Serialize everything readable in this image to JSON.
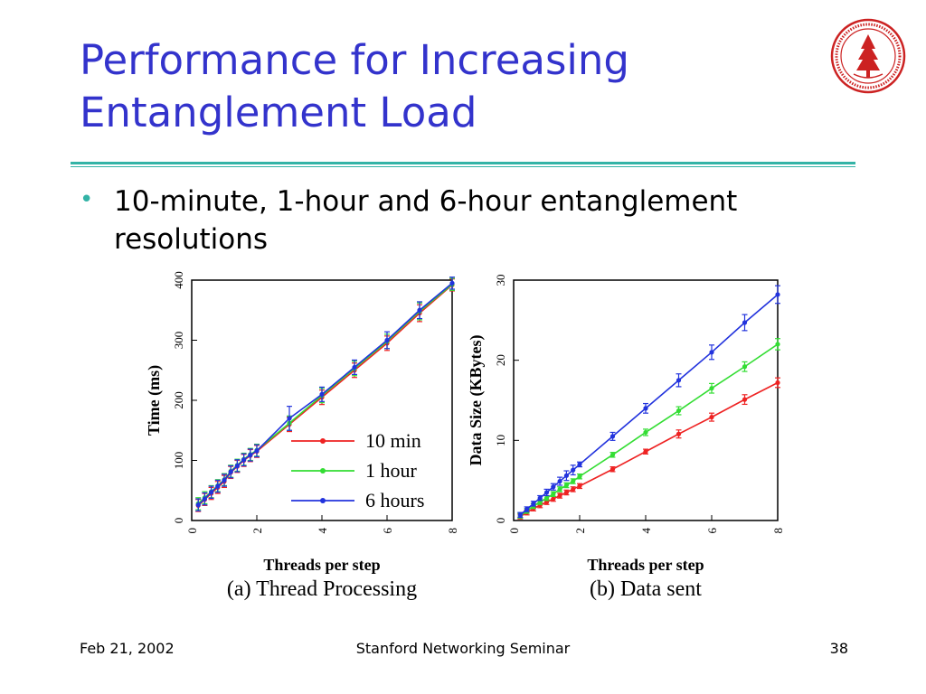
{
  "slide": {
    "title_line1": "Performance for Increasing",
    "title_line2": "Entanglement Load",
    "bullet": "10-minute, 1-hour and 6-hour entanglement resolutions",
    "footer_left": "Feb 21, 2002",
    "footer_center": "Stanford Networking Seminar",
    "footer_right": "38",
    "logo": "stanford-university-seal-icon",
    "accent_color": "#33b3a6",
    "title_color": "#3333cc"
  },
  "chart_data": [
    {
      "type": "line",
      "caption": "(a) Thread Processing",
      "xlabel": "Threads per step",
      "ylabel": "Time (ms)",
      "xlim": [
        0,
        8
      ],
      "ylim": [
        0,
        400
      ],
      "x_ticks": [
        0,
        2,
        4,
        6,
        8
      ],
      "y_ticks": [
        0,
        100,
        200,
        300,
        400
      ],
      "legend_position": "bottom-right",
      "x": [
        0.2,
        0.4,
        0.6,
        0.8,
        1.0,
        1.2,
        1.4,
        1.6,
        1.8,
        2,
        3,
        4,
        5,
        6,
        7,
        8
      ],
      "series": [
        {
          "name": "10 min",
          "color": "#ee2222",
          "values": [
            25,
            35,
            45,
            55,
            65,
            80,
            90,
            100,
            108,
            115,
            160,
            205,
            250,
            295,
            345,
            392
          ],
          "errors": [
            10,
            10,
            10,
            10,
            10,
            10,
            10,
            10,
            10,
            10,
            12,
            12,
            12,
            12,
            14,
            10
          ]
        },
        {
          "name": "1 hour",
          "color": "#33dd33",
          "values": [
            28,
            38,
            48,
            58,
            68,
            82,
            92,
            102,
            110,
            117,
            162,
            208,
            253,
            298,
            348,
            393
          ],
          "errors": [
            10,
            10,
            10,
            10,
            10,
            10,
            10,
            10,
            10,
            10,
            12,
            12,
            12,
            12,
            14,
            10
          ]
        },
        {
          "name": "6 hours",
          "color": "#2233dd",
          "values": [
            26,
            36,
            47,
            57,
            67,
            81,
            91,
            101,
            109,
            116,
            170,
            210,
            255,
            300,
            350,
            395
          ],
          "errors": [
            10,
            10,
            10,
            10,
            10,
            10,
            10,
            10,
            10,
            10,
            20,
            12,
            12,
            14,
            14,
            10
          ]
        }
      ]
    },
    {
      "type": "line",
      "caption": "(b) Data sent",
      "xlabel": "Threads per step",
      "ylabel": "Data Size (KBytes)",
      "xlim": [
        0,
        8
      ],
      "ylim": [
        0,
        30
      ],
      "x_ticks": [
        0,
        2,
        4,
        6,
        8
      ],
      "y_ticks": [
        0,
        10,
        20,
        30
      ],
      "x": [
        0.2,
        0.4,
        0.6,
        0.8,
        1.0,
        1.2,
        1.4,
        1.6,
        1.8,
        2,
        3,
        4,
        5,
        6,
        7,
        8
      ],
      "series": [
        {
          "name": "10 min",
          "color": "#ee2222",
          "values": [
            0.5,
            1.0,
            1.5,
            1.9,
            2.3,
            2.7,
            3.1,
            3.5,
            3.9,
            4.3,
            6.4,
            8.6,
            10.8,
            12.9,
            15.1,
            17.2
          ],
          "errors": [
            0.3,
            0.3,
            0.3,
            0.3,
            0.3,
            0.3,
            0.3,
            0.3,
            0.3,
            0.3,
            0.3,
            0.3,
            0.5,
            0.5,
            0.6,
            0.6
          ]
        },
        {
          "name": "1 hour",
          "color": "#33dd33",
          "values": [
            0.6,
            1.2,
            1.8,
            2.3,
            2.8,
            3.3,
            3.9,
            4.4,
            4.9,
            5.5,
            8.2,
            11.0,
            13.7,
            16.5,
            19.2,
            22.0
          ],
          "errors": [
            0.3,
            0.3,
            0.3,
            0.3,
            0.3,
            0.3,
            0.3,
            0.3,
            0.3,
            0.3,
            0.3,
            0.4,
            0.5,
            0.6,
            0.6,
            0.7
          ]
        },
        {
          "name": "6 hours",
          "color": "#2233dd",
          "values": [
            0.7,
            1.4,
            2.1,
            2.8,
            3.5,
            4.2,
            4.9,
            5.6,
            6.3,
            7.0,
            10.5,
            14.0,
            17.5,
            21.0,
            24.7,
            28.2
          ],
          "errors": [
            0.3,
            0.3,
            0.3,
            0.3,
            0.4,
            0.4,
            0.5,
            0.6,
            0.6,
            0.3,
            0.5,
            0.6,
            0.8,
            0.9,
            1.0,
            1.1
          ]
        }
      ]
    }
  ]
}
